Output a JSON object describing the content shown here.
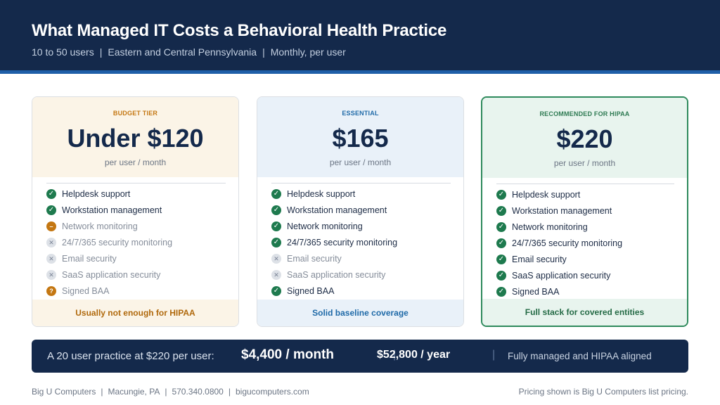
{
  "header": {
    "title": "What Managed IT Costs a Behavioral Health Practice",
    "subtitle_parts": [
      "10 to 50 users",
      "Eastern and Central Pennsylvania",
      "Monthly, per user"
    ],
    "separator": "|"
  },
  "colors": {
    "navy": "#14294b",
    "stripe": "#1f5fa8",
    "budget_accent": "#c47712",
    "essential_accent": "#1f6aa8",
    "recommended_accent": "#2e8a5c"
  },
  "cards": [
    {
      "tier": "BUDGET TIER",
      "price": "Under $120",
      "per": "per user / month",
      "footer": "Usually not enough for HIPAA",
      "features": [
        {
          "label": "Helpdesk support",
          "status": "yes",
          "icon": "check-icon"
        },
        {
          "label": "Workstation management",
          "status": "yes",
          "icon": "check-icon"
        },
        {
          "label": "Network monitoring",
          "status": "partial",
          "icon": "partial-icon"
        },
        {
          "label": "24/7/365 security monitoring",
          "status": "no",
          "icon": "x-icon"
        },
        {
          "label": "Email security",
          "status": "no",
          "icon": "x-icon"
        },
        {
          "label": "SaaS application security",
          "status": "no",
          "icon": "x-icon"
        },
        {
          "label": "Signed BAA",
          "status": "question",
          "icon": "question-icon"
        }
      ]
    },
    {
      "tier": "ESSENTIAL",
      "price": "$165",
      "per": "per user / month",
      "footer": "Solid baseline coverage",
      "features": [
        {
          "label": "Helpdesk support",
          "status": "yes",
          "icon": "check-icon"
        },
        {
          "label": "Workstation management",
          "status": "yes",
          "icon": "check-icon"
        },
        {
          "label": "Network monitoring",
          "status": "yes",
          "icon": "check-icon"
        },
        {
          "label": "24/7/365 security monitoring",
          "status": "yes",
          "icon": "check-icon"
        },
        {
          "label": "Email security",
          "status": "no",
          "icon": "x-icon"
        },
        {
          "label": "SaaS application security",
          "status": "no",
          "icon": "x-icon"
        },
        {
          "label": "Signed BAA",
          "status": "yes",
          "icon": "check-icon"
        }
      ]
    },
    {
      "tier": "RECOMMENDED FOR HIPAA",
      "price": "$220",
      "per": "per user / month",
      "footer": "Full stack for covered entities",
      "features": [
        {
          "label": "Helpdesk support",
          "status": "yes",
          "icon": "check-icon"
        },
        {
          "label": "Workstation management",
          "status": "yes",
          "icon": "check-icon"
        },
        {
          "label": "Network monitoring",
          "status": "yes",
          "icon": "check-icon"
        },
        {
          "label": "24/7/365 security monitoring",
          "status": "yes",
          "icon": "check-icon"
        },
        {
          "label": "Email security",
          "status": "yes",
          "icon": "check-icon"
        },
        {
          "label": "SaaS application security",
          "status": "yes",
          "icon": "check-icon"
        },
        {
          "label": "Signed BAA",
          "status": "yes",
          "icon": "check-icon"
        }
      ]
    }
  ],
  "summary": {
    "lead": "A 20 user practice at $220 per user:",
    "monthly": "$4,400 / month",
    "yearly": "$52,800 / year",
    "note": "Fully managed and HIPAA aligned",
    "divider": "|"
  },
  "footer": {
    "contact_parts": [
      "Big U Computers",
      "Macungie, PA",
      "570.340.0800",
      "bigucomputers.com"
    ],
    "separator": "|",
    "disclaimer": "Pricing shown is Big U Computers list pricing."
  }
}
